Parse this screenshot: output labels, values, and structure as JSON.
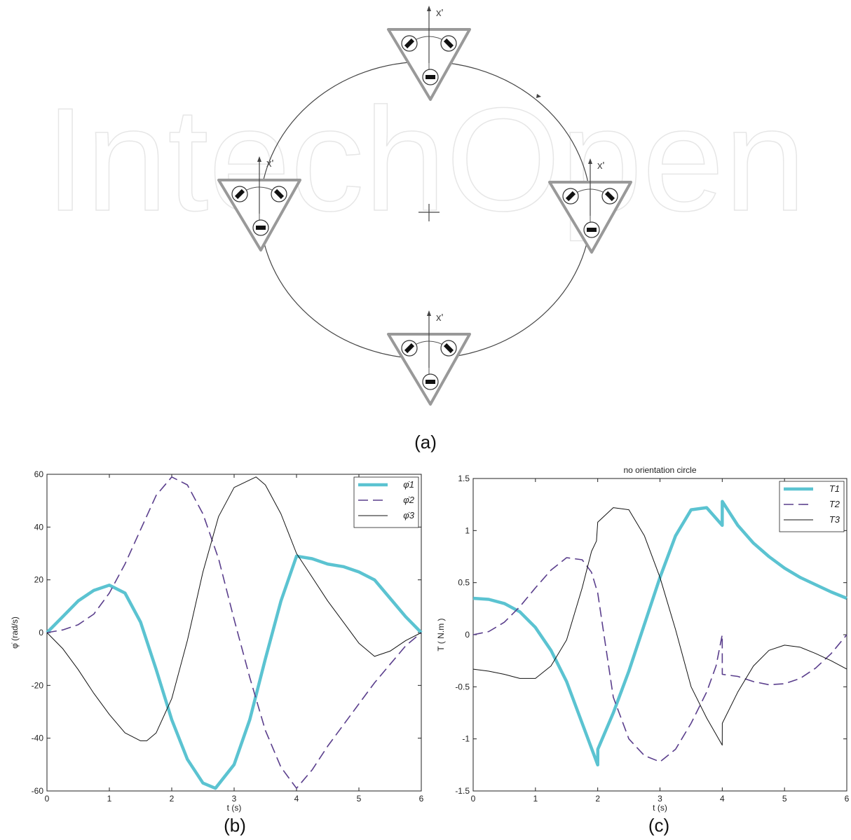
{
  "watermark": "IntechOpen",
  "diagram": {
    "caption": "(a)",
    "axis_label": "x'",
    "center_marker": "+"
  },
  "chart_data": [
    {
      "id": "b",
      "type": "line",
      "caption": "(b)",
      "title": "",
      "xlabel": "t (s)",
      "ylabel": "φ̇ (rad/s)",
      "xlim": [
        0,
        6
      ],
      "ylim": [
        -60,
        60
      ],
      "xticks": [
        "0",
        "1",
        "2",
        "3",
        "4",
        "5",
        "6"
      ],
      "yticks": [
        "-60",
        "-40",
        "-20",
        "0",
        "20",
        "40",
        "60"
      ],
      "legend_position": "top-right",
      "series": [
        {
          "name": "φ̇1",
          "color": "#5bc3d1",
          "style": "thick",
          "x": [
            0,
            0.25,
            0.5,
            0.75,
            1,
            1.25,
            1.5,
            1.75,
            2,
            2.25,
            2.5,
            2.7,
            3,
            3.25,
            3.5,
            3.75,
            4,
            4.25,
            4.5,
            4.75,
            5,
            5.25,
            5.5,
            5.75,
            6
          ],
          "y": [
            0,
            6,
            12,
            16,
            18,
            15,
            4,
            -14,
            -33,
            -48,
            -57,
            -59,
            -50,
            -33,
            -10,
            12,
            29,
            28,
            26,
            25,
            23,
            20,
            13,
            6,
            0
          ]
        },
        {
          "name": "φ̇2",
          "color": "#5a3e8c",
          "style": "dash",
          "x": [
            0,
            0.25,
            0.5,
            0.75,
            1,
            1.25,
            1.5,
            1.75,
            2,
            2.25,
            2.5,
            2.75,
            3,
            3.25,
            3.5,
            3.75,
            4,
            4.25,
            4.5,
            4.75,
            5,
            5.25,
            5.5,
            5.75,
            6
          ],
          "y": [
            0,
            1,
            3,
            7,
            15,
            26,
            39,
            52,
            59,
            56,
            45,
            28,
            5,
            -17,
            -37,
            -51,
            -59,
            -52,
            -43,
            -35,
            -27,
            -19,
            -12,
            -5,
            0
          ]
        },
        {
          "name": "φ̇3",
          "color": "#111111",
          "style": "thin",
          "x": [
            0,
            0.25,
            0.5,
            0.75,
            1,
            1.25,
            1.5,
            1.6,
            1.75,
            2,
            2.25,
            2.5,
            2.75,
            3,
            3.35,
            3.5,
            3.75,
            4,
            4.25,
            4.5,
            4.75,
            5,
            5.25,
            5.5,
            5.75,
            6
          ],
          "y": [
            0,
            -6,
            -14,
            -23,
            -31,
            -38,
            -41,
            -41,
            -38,
            -25,
            -3,
            23,
            44,
            55,
            59,
            56,
            45,
            30,
            21,
            12,
            4,
            -4,
            -9,
            -7,
            -3,
            0
          ]
        }
      ]
    },
    {
      "id": "c",
      "type": "line",
      "caption": "(c)",
      "title": "no orientation circle",
      "xlabel": "t (s)",
      "ylabel": "T ( N.m   )",
      "xlim": [
        0,
        6
      ],
      "ylim": [
        -1.5,
        1.5
      ],
      "xticks": [
        "0",
        "1",
        "2",
        "3",
        "4",
        "5",
        "6"
      ],
      "yticks": [
        "-1.5",
        "-1",
        "-0.5",
        "0",
        "0.5",
        "1",
        "1.5"
      ],
      "legend_position": "top-right",
      "series": [
        {
          "name": "T1",
          "color": "#5bc3d1",
          "style": "thick",
          "x": [
            0,
            0.25,
            0.5,
            0.75,
            1,
            1.25,
            1.5,
            1.75,
            2,
            2.001,
            2.25,
            2.5,
            2.75,
            3,
            3.25,
            3.5,
            3.75,
            4,
            4.001,
            4.25,
            4.5,
            4.75,
            5,
            5.25,
            5.5,
            5.75,
            6
          ],
          "y": [
            0.35,
            0.34,
            0.3,
            0.22,
            0.07,
            -0.15,
            -0.45,
            -0.85,
            -1.25,
            -1.1,
            -0.75,
            -0.35,
            0.1,
            0.55,
            0.95,
            1.2,
            1.22,
            1.05,
            1.28,
            1.05,
            0.88,
            0.75,
            0.64,
            0.55,
            0.48,
            0.41,
            0.35
          ]
        },
        {
          "name": "T2",
          "color": "#5a3e8c",
          "style": "dash",
          "x": [
            0,
            0.25,
            0.5,
            0.75,
            1,
            1.25,
            1.5,
            1.75,
            1.9,
            2,
            2.25,
            2.5,
            2.75,
            3,
            3.25,
            3.5,
            3.75,
            3.9,
            4,
            4.001,
            4.25,
            4.5,
            4.75,
            5,
            5.25,
            5.5,
            5.75,
            6
          ],
          "y": [
            0,
            0.03,
            0.12,
            0.27,
            0.45,
            0.62,
            0.74,
            0.72,
            0.6,
            0.4,
            -0.6,
            -1.0,
            -1.16,
            -1.22,
            -1.1,
            -0.85,
            -0.55,
            -0.3,
            0,
            -0.38,
            -0.4,
            -0.45,
            -0.48,
            -0.47,
            -0.42,
            -0.32,
            -0.18,
            0
          ]
        },
        {
          "name": "T3",
          "color": "#111111",
          "style": "thin",
          "x": [
            0,
            0.25,
            0.5,
            0.75,
            1,
            1.25,
            1.5,
            1.75,
            1.9,
            1.98,
            2,
            2.25,
            2.5,
            2.75,
            3,
            3.25,
            3.5,
            3.75,
            4,
            4.001,
            4.25,
            4.5,
            4.75,
            5,
            5.25,
            5.5,
            5.75,
            6
          ],
          "y": [
            -0.33,
            -0.35,
            -0.38,
            -0.42,
            -0.42,
            -0.3,
            -0.05,
            0.45,
            0.8,
            0.9,
            1.08,
            1.22,
            1.2,
            0.95,
            0.55,
            0.05,
            -0.5,
            -0.8,
            -1.06,
            -0.85,
            -0.55,
            -0.3,
            -0.15,
            -0.1,
            -0.12,
            -0.18,
            -0.25,
            -0.33
          ]
        }
      ]
    }
  ]
}
